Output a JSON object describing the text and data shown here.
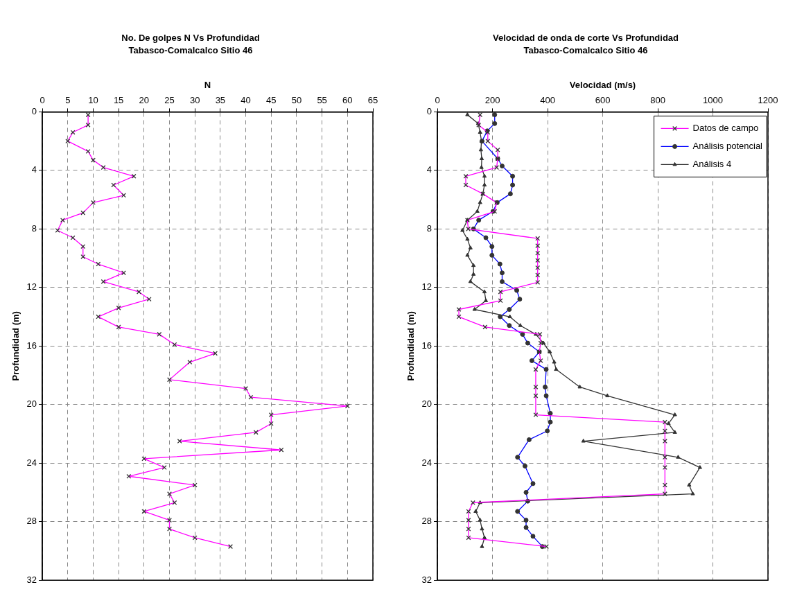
{
  "chart_data": [
    {
      "type": "line",
      "title": "No. De golpes N Vs Profundidad",
      "subtitle": "Tabasco-Comalcalco Sitio 46",
      "xlabel": "N",
      "ylabel": "Profundidad (m)",
      "xlim": [
        0,
        65
      ],
      "xticks": [
        0,
        5,
        10,
        15,
        20,
        25,
        30,
        35,
        40,
        45,
        50,
        55,
        60,
        65
      ],
      "ylim": [
        32,
        0
      ],
      "yticks": [
        0,
        4,
        8,
        12,
        16,
        20,
        24,
        28,
        32
      ],
      "grid": true,
      "legend": false,
      "marker": "cross",
      "series": [
        {
          "color": "#ff00ff",
          "x": [
            9,
            9,
            6,
            5,
            9,
            10,
            12,
            18,
            14,
            16,
            10,
            8,
            4,
            3,
            6,
            8,
            8,
            11,
            16,
            12,
            19,
            21,
            15,
            11,
            15,
            23,
            26,
            34,
            29,
            25,
            40,
            41,
            60,
            45,
            45,
            42,
            27,
            47,
            20,
            24,
            17,
            30,
            25,
            26,
            20,
            25,
            25,
            30,
            37
          ],
          "values": [
            0.2,
            0.9,
            1.4,
            2.0,
            2.7,
            3.3,
            3.8,
            4.4,
            5.0,
            5.7,
            6.2,
            6.9,
            7.4,
            8.1,
            8.6,
            9.2,
            9.9,
            10.4,
            11.0,
            11.6,
            12.3,
            12.8,
            13.4,
            14.0,
            14.7,
            15.2,
            15.9,
            16.5,
            17.1,
            18.3,
            18.9,
            19.5,
            20.1,
            20.7,
            21.3,
            21.9,
            22.5,
            23.1,
            23.7,
            24.3,
            24.9,
            25.5,
            26.1,
            26.7,
            27.3,
            27.9,
            28.5,
            29.1,
            29.7
          ]
        }
      ]
    },
    {
      "type": "line",
      "title": "Velocidad de onda de corte Vs Profundidad",
      "subtitle": "Tabasco-Comalcalco Sitio 46",
      "xlabel": "Velocidad (m/s)",
      "ylabel": "Profundidad (m)",
      "xlim": [
        0,
        1200
      ],
      "xticks": [
        0,
        200,
        400,
        600,
        800,
        1000,
        1200
      ],
      "ylim": [
        32,
        0
      ],
      "yticks": [
        0,
        4,
        8,
        12,
        16,
        20,
        24,
        28,
        32
      ],
      "grid": true,
      "legend": "top right",
      "series": [
        {
          "name": "Datos de campo",
          "color": "#ff00ff",
          "marker": "cross",
          "x": [
            155,
            150,
            183,
            183,
            219,
            219,
            215,
            103,
            103,
            165,
            215,
            208,
            109,
            112,
            364,
            364,
            364,
            364,
            364,
            364,
            364,
            229,
            229,
            78,
            78,
            173,
            372,
            375,
            370,
            375,
            357,
            357,
            357,
            357,
            826,
            826,
            826,
            826,
            826,
            826,
            826,
            129,
            113,
            113,
            113,
            113,
            396
          ],
          "values": [
            0.2,
            0.9,
            1.4,
            2.0,
            2.6,
            3.2,
            3.8,
            4.4,
            5.0,
            5.6,
            6.2,
            6.8,
            7.4,
            8.0,
            8.65,
            9.15,
            9.65,
            10.15,
            10.65,
            11.15,
            11.65,
            12.3,
            12.9,
            13.5,
            14.0,
            14.7,
            15.2,
            15.8,
            16.4,
            17.0,
            17.6,
            18.8,
            19.4,
            20.7,
            21.2,
            21.8,
            22.5,
            23.6,
            24.3,
            25.5,
            26.1,
            26.7,
            27.3,
            27.9,
            28.5,
            29.1,
            29.7
          ]
        },
        {
          "name": "Análisis potencial",
          "color": "#0000ff",
          "marker": "circle",
          "x": [
            208,
            208,
            181,
            162,
            219,
            235,
            273,
            273,
            265,
            217,
            202,
            150,
            131,
            176,
            198,
            198,
            227,
            235,
            235,
            288,
            299,
            261,
            228,
            261,
            309,
            328,
            370,
            343,
            395,
            391,
            395,
            410,
            410,
            399,
            333,
            291,
            318,
            347,
            322,
            328,
            291,
            322,
            322,
            347,
            381
          ],
          "values": [
            0.2,
            0.8,
            1.3,
            2.0,
            3.2,
            3.7,
            4.4,
            5.0,
            5.6,
            6.2,
            6.8,
            7.4,
            8.0,
            8.6,
            9.2,
            9.8,
            10.4,
            11.0,
            11.6,
            12.2,
            12.8,
            13.5,
            14.0,
            14.6,
            15.2,
            15.8,
            16.4,
            17.0,
            17.6,
            18.8,
            19.4,
            20.6,
            21.2,
            21.8,
            22.4,
            23.6,
            24.2,
            25.4,
            26.0,
            26.6,
            27.3,
            27.9,
            28.4,
            29.0,
            29.7
          ]
        },
        {
          "name": "Análisis 4",
          "color": "#333333",
          "marker": "triangle",
          "x": [
            109,
            148,
            155,
            160,
            158,
            161,
            160,
            171,
            171,
            165,
            155,
            145,
            109,
            91,
            109,
            120,
            109,
            131,
            131,
            120,
            171,
            176,
            135,
            263,
            301,
            357,
            385,
            408,
            424,
            431,
            517,
            617,
            862,
            839,
            862,
            530,
            874,
            953,
            914,
            927,
            155,
            139,
            155,
            162,
            171,
            162
          ],
          "values": [
            0.2,
            0.8,
            1.4,
            2.0,
            2.6,
            3.2,
            3.8,
            4.4,
            5.0,
            5.6,
            6.2,
            6.8,
            7.4,
            8.1,
            8.7,
            9.3,
            9.8,
            10.5,
            11.1,
            11.6,
            12.3,
            12.9,
            13.5,
            14.0,
            14.6,
            15.2,
            15.8,
            16.4,
            17.1,
            17.6,
            18.8,
            19.4,
            20.7,
            21.3,
            21.9,
            22.5,
            23.6,
            24.3,
            25.5,
            26.1,
            26.7,
            27.3,
            27.9,
            28.5,
            29.1,
            29.7
          ]
        }
      ]
    }
  ]
}
